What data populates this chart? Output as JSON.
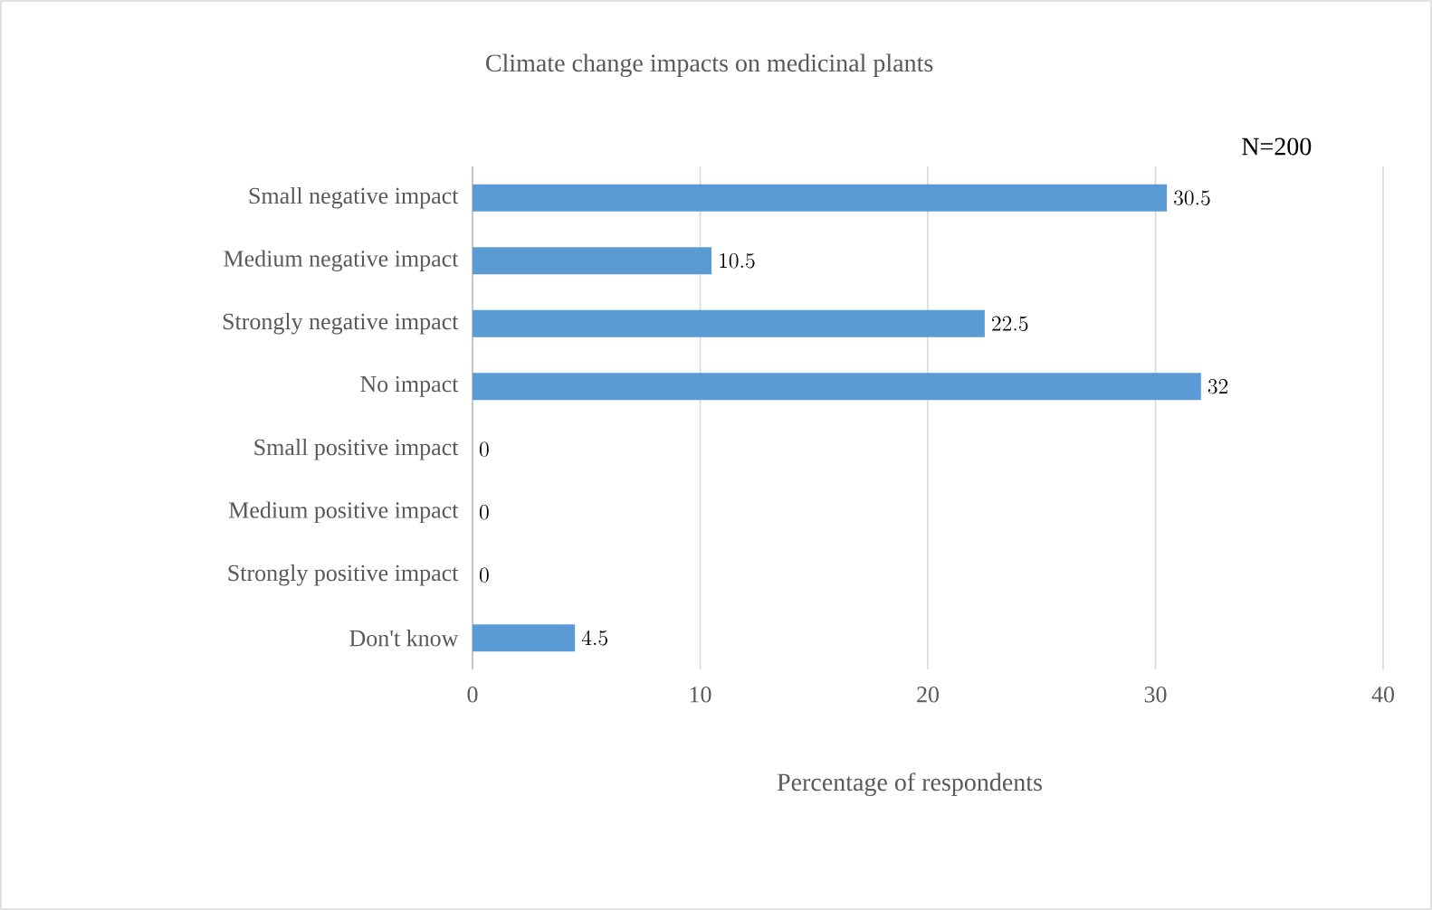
{
  "chart_data": {
    "type": "bar",
    "orientation": "horizontal",
    "title": "Climate change impacts on medicinal plants",
    "xlabel": "Percentage of respondents",
    "categories": [
      "Small negative impact",
      "Medium negative impact",
      "Strongly negative impact",
      "No impact",
      "Small positive impact",
      "Medium positive impact",
      "Strongly positive impact",
      "Don't know"
    ],
    "values": [
      30.5,
      10.5,
      22.5,
      32,
      0,
      0,
      0,
      4.5
    ],
    "color": "#5b9bd5",
    "xlim": [
      0,
      40
    ],
    "xticks": [
      0,
      10,
      20,
      30,
      40
    ],
    "grid": "x",
    "data_labels": true,
    "annotations": [
      "N=200"
    ]
  }
}
